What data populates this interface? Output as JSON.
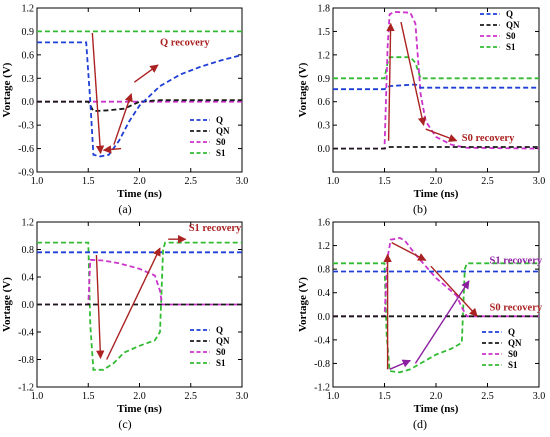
{
  "chart_data": [
    {
      "type": "line",
      "panel_label": "(a)",
      "xlabel": "Time (ns)",
      "ylabel": "Vortage (V)",
      "xlim": [
        1.0,
        3.0
      ],
      "ylim": [
        -0.9,
        1.2
      ],
      "xticks": [
        1.0,
        1.5,
        2.0,
        2.5,
        3.0
      ],
      "xtick_labels": [
        "1.0",
        "1.5",
        "2.0",
        "2.5",
        "3.0"
      ],
      "yticks": [
        -0.9,
        -0.6,
        -0.3,
        0.0,
        0.3,
        0.6,
        0.9,
        1.2
      ],
      "ytick_labels": [
        "-0.9",
        "-0.6",
        "-0.3",
        "0.0",
        "0.3",
        "0.6",
        "0.9",
        "1.2"
      ],
      "legend": [
        "Q",
        "QN",
        "S0",
        "S1"
      ],
      "legend_position": "bottom-right",
      "series": [
        {
          "name": "Q",
          "color": "#1f3fd6",
          "x": [
            1.0,
            1.48,
            1.52,
            1.55,
            1.62,
            1.7,
            1.8,
            1.9,
            2.0,
            2.2,
            2.4,
            2.6,
            2.8,
            3.0
          ],
          "y": [
            0.76,
            0.76,
            0.0,
            -0.68,
            -0.7,
            -0.68,
            -0.5,
            -0.25,
            -0.05,
            0.2,
            0.35,
            0.45,
            0.53,
            0.6
          ]
        },
        {
          "name": "QN",
          "color": "#1a1a1a",
          "x": [
            1.0,
            1.5,
            1.55,
            1.7,
            1.85,
            2.0,
            2.2,
            3.0
          ],
          "y": [
            0.0,
            0.0,
            -0.12,
            -0.11,
            -0.09,
            0.0,
            0.02,
            0.02
          ]
        },
        {
          "name": "S0",
          "color": "#cc33cc",
          "x": [
            1.0,
            3.0
          ],
          "y": [
            0.0,
            0.0
          ]
        },
        {
          "name": "S1",
          "color": "#33bb33",
          "x": [
            1.0,
            3.0
          ],
          "y": [
            0.9,
            0.9
          ]
        }
      ],
      "annotations": [
        {
          "text": "Q recovery",
          "color": "#aa2222"
        }
      ]
    },
    {
      "type": "line",
      "panel_label": "(b)",
      "xlabel": "Time (ns)",
      "ylabel": "Vortage (V)",
      "xlim": [
        1.0,
        3.0
      ],
      "ylim": [
        -0.3,
        1.8
      ],
      "xticks": [
        1.0,
        1.5,
        2.0,
        2.5,
        3.0
      ],
      "xtick_labels": [
        "1.0",
        "1.5",
        "2.0",
        "2.5",
        "3.0"
      ],
      "yticks": [
        0.0,
        0.3,
        0.6,
        0.9,
        1.2,
        1.5,
        1.8
      ],
      "ytick_labels": [
        "0.0",
        "0.3",
        "0.6",
        "0.9",
        "1.2",
        "1.5",
        "1.8"
      ],
      "legend": [
        "Q",
        "QN",
        "S0",
        "S1"
      ],
      "legend_position": "top-right",
      "series": [
        {
          "name": "Q",
          "color": "#1f3fd6",
          "x": [
            1.0,
            1.5,
            1.55,
            1.8,
            1.85,
            3.0
          ],
          "y": [
            0.76,
            0.76,
            0.8,
            0.82,
            0.78,
            0.78
          ]
        },
        {
          "name": "QN",
          "color": "#1a1a1a",
          "x": [
            1.0,
            1.5,
            1.55,
            3.0
          ],
          "y": [
            0.0,
            0.0,
            0.02,
            0.02
          ]
        },
        {
          "name": "S0",
          "color": "#cc33cc",
          "x": [
            1.0,
            1.5,
            1.53,
            1.55,
            1.6,
            1.75,
            1.8,
            1.85,
            1.9,
            2.0,
            2.15,
            2.3,
            3.0
          ],
          "y": [
            0.0,
            0.0,
            1.3,
            1.72,
            1.75,
            1.74,
            1.6,
            0.7,
            0.35,
            0.15,
            0.05,
            0.01,
            0.0
          ]
        },
        {
          "name": "S1",
          "color": "#33bb33",
          "x": [
            1.0,
            1.5,
            1.53,
            1.55,
            1.75,
            1.8,
            1.85,
            3.0
          ],
          "y": [
            0.9,
            0.9,
            1.1,
            1.17,
            1.17,
            1.1,
            0.9,
            0.9
          ]
        }
      ],
      "annotations": [
        {
          "text": "S0 recovery",
          "color": "#aa2222"
        }
      ]
    },
    {
      "type": "line",
      "panel_label": "(c)",
      "xlabel": "Time (ns)",
      "ylabel": "Vortage (V)",
      "xlim": [
        1.0,
        3.0
      ],
      "ylim": [
        -1.2,
        1.2
      ],
      "xticks": [
        1.0,
        1.5,
        2.0,
        2.5,
        3.0
      ],
      "xtick_labels": [
        "1.0",
        "1.5",
        "2.0",
        "2.5",
        "3.0"
      ],
      "yticks": [
        -1.2,
        -0.8,
        -0.4,
        0.0,
        0.4,
        0.8,
        1.2
      ],
      "ytick_labels": [
        "-1.2",
        "-0.8",
        "-0.4",
        "0.0",
        "0.4",
        "0.8",
        "1.2"
      ],
      "legend": [
        "Q",
        "QN",
        "S0",
        "S1"
      ],
      "legend_position": "bottom-right",
      "series": [
        {
          "name": "Q",
          "color": "#1f3fd6",
          "x": [
            1.0,
            3.0
          ],
          "y": [
            0.76,
            0.76
          ]
        },
        {
          "name": "QN",
          "color": "#1a1a1a",
          "x": [
            1.0,
            3.0
          ],
          "y": [
            0.0,
            0.0
          ]
        },
        {
          "name": "S0",
          "color": "#cc33cc",
          "x": [
            1.0,
            1.5,
            1.52,
            1.65,
            1.8,
            2.0,
            2.15,
            2.2,
            2.22,
            3.0
          ],
          "y": [
            0.0,
            0.0,
            0.65,
            0.64,
            0.6,
            0.52,
            0.42,
            0.2,
            0.0,
            0.0
          ]
        },
        {
          "name": "S1",
          "color": "#33bb33",
          "x": [
            1.0,
            1.5,
            1.52,
            1.55,
            1.65,
            1.75,
            1.85,
            2.0,
            2.15,
            2.2,
            2.23,
            2.25,
            3.0
          ],
          "y": [
            0.9,
            0.9,
            -0.3,
            -0.95,
            -0.95,
            -0.85,
            -0.7,
            -0.6,
            -0.52,
            -0.4,
            0.8,
            0.9,
            0.9
          ]
        }
      ],
      "annotations": [
        {
          "text": "S1 recovery",
          "color": "#aa2222"
        }
      ]
    },
    {
      "type": "line",
      "panel_label": "(d)",
      "xlabel": "Time (ns)",
      "ylabel": "Vortage (V)",
      "xlim": [
        1.0,
        3.0
      ],
      "ylim": [
        -1.2,
        1.6
      ],
      "xticks": [
        1.0,
        1.5,
        2.0,
        2.5,
        3.0
      ],
      "xtick_labels": [
        "1.0",
        "1.5",
        "2.0",
        "2.5",
        "3.0"
      ],
      "yticks": [
        -1.2,
        -0.8,
        -0.4,
        0.0,
        0.4,
        0.8,
        1.2,
        1.6
      ],
      "ytick_labels": [
        "-1.2",
        "-0.8",
        "-0.4",
        "0.0",
        "0.4",
        "0.8",
        "1.2",
        "1.6"
      ],
      "legend": [
        "Q",
        "QN",
        "S0",
        "S1"
      ],
      "legend_position": "bottom-right",
      "series": [
        {
          "name": "Q",
          "color": "#1f3fd6",
          "x": [
            1.0,
            3.0
          ],
          "y": [
            0.76,
            0.76
          ]
        },
        {
          "name": "QN",
          "color": "#1a1a1a",
          "x": [
            1.0,
            3.0
          ],
          "y": [
            0.0,
            0.0
          ]
        },
        {
          "name": "S0",
          "color": "#cc33cc",
          "x": [
            1.0,
            1.5,
            1.53,
            1.56,
            1.65,
            1.7,
            1.8,
            1.9,
            2.0,
            2.1,
            2.2,
            2.25,
            2.3,
            3.0
          ],
          "y": [
            0.0,
            0.0,
            1.0,
            1.3,
            1.33,
            1.28,
            1.05,
            0.85,
            0.65,
            0.5,
            0.35,
            0.15,
            0.0,
            0.0
          ]
        },
        {
          "name": "S1",
          "color": "#33bb33",
          "x": [
            1.0,
            1.5,
            1.52,
            1.55,
            1.65,
            1.75,
            1.85,
            2.0,
            2.15,
            2.25,
            2.28,
            2.3,
            3.0
          ],
          "y": [
            0.9,
            0.9,
            -0.3,
            -0.93,
            -0.95,
            -0.9,
            -0.8,
            -0.65,
            -0.55,
            -0.45,
            0.8,
            0.9,
            0.9
          ]
        }
      ],
      "annotations": [
        {
          "text": "S1 recovery",
          "color": "#8b1fa0"
        },
        {
          "text": "S0 recovery",
          "color": "#aa2222"
        }
      ]
    }
  ]
}
